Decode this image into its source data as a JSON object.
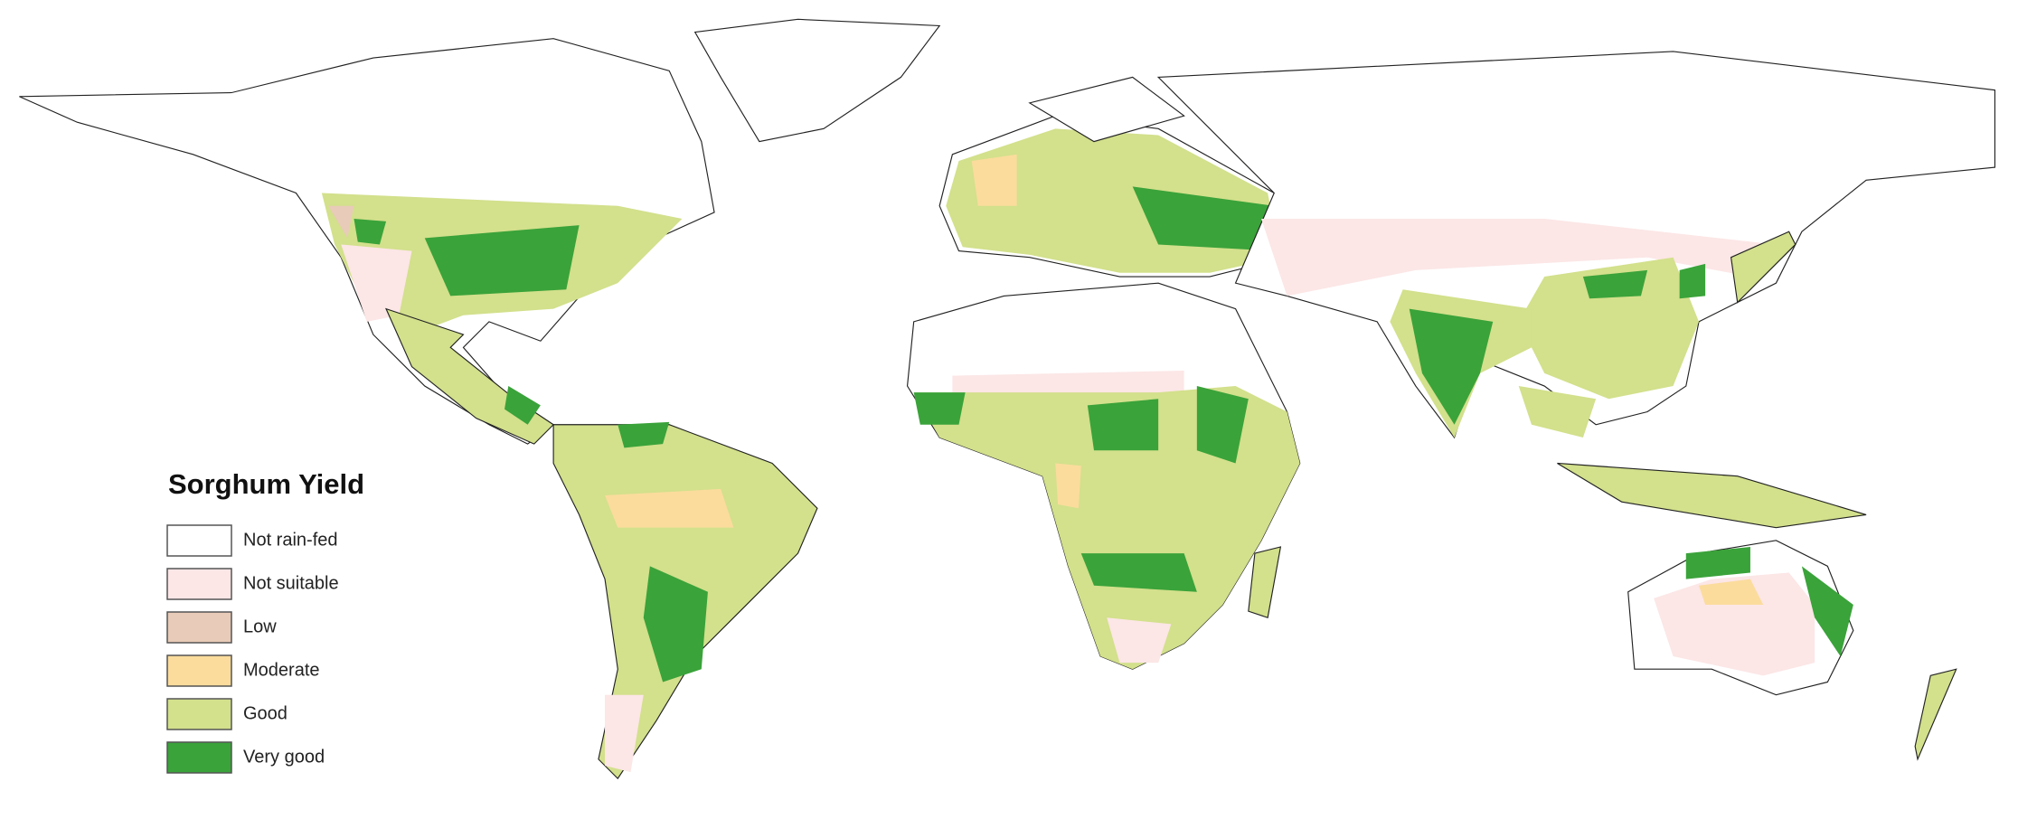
{
  "legend": {
    "title": "Sorghum Yield",
    "items": [
      {
        "label": "Not rain-fed",
        "color": "#ffffff"
      },
      {
        "label": "Not suitable",
        "color": "#fce6e6"
      },
      {
        "label": "Low",
        "color": "#e8cbb8"
      },
      {
        "label": "Moderate",
        "color": "#fbdc9c"
      },
      {
        "label": "Good",
        "color": "#d3e08c"
      },
      {
        "label": "Very good",
        "color": "#3aa33a"
      }
    ]
  }
}
